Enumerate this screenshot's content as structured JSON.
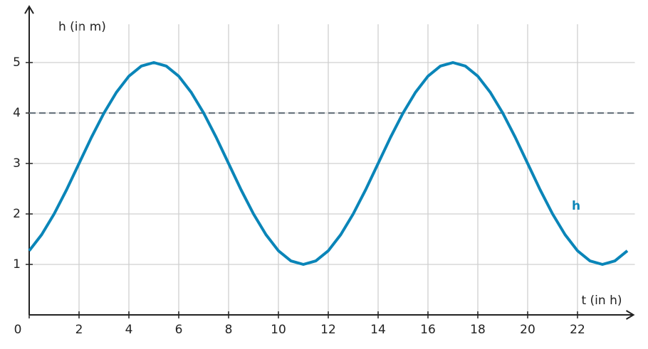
{
  "chart_data": {
    "type": "line",
    "x_label": "t (in h)",
    "y_label": "h (in m)",
    "x": [
      0,
      0.5,
      1,
      1.5,
      2,
      2.5,
      3,
      3.5,
      4,
      4.5,
      5,
      5.5,
      6,
      6.5,
      7,
      7.5,
      8,
      8.5,
      9,
      9.5,
      10,
      10.5,
      11,
      11.5,
      12,
      12.5,
      13,
      13.5,
      14,
      14.5,
      15,
      15.5,
      16,
      16.5,
      17,
      17.5,
      18,
      18.5,
      19,
      19.5,
      20,
      20.5,
      21,
      21.5,
      22,
      22.5,
      23,
      23.5,
      24
    ],
    "series": [
      {
        "name": "h",
        "color": "#0a85b8",
        "values": [
          1.27,
          1.59,
          2,
          2.48,
          3,
          3.52,
          4,
          4.41,
          4.73,
          4.93,
          5,
          4.93,
          4.73,
          4.41,
          4,
          3.52,
          3,
          2.48,
          2,
          1.59,
          1.27,
          1.07,
          1,
          1.07,
          1.27,
          1.59,
          2,
          2.48,
          3,
          3.52,
          4,
          4.41,
          4.73,
          4.93,
          5,
          4.93,
          4.73,
          4.41,
          4,
          3.52,
          3,
          2.48,
          2,
          1.59,
          1.27,
          1.07,
          1,
          1.07,
          1.27
        ]
      }
    ],
    "hline": {
      "value": 4,
      "color": "#6b7580"
    },
    "xlim": [
      0,
      24.3
    ],
    "ylim": [
      0,
      5.9
    ],
    "xticks": [
      0,
      2,
      4,
      6,
      8,
      10,
      12,
      14,
      16,
      18,
      20,
      22
    ],
    "yticks": [
      1,
      2,
      3,
      4,
      5
    ],
    "grid": true
  }
}
